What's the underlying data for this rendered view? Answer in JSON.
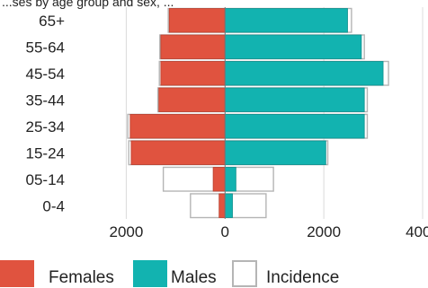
{
  "chart_data": {
    "type": "bar",
    "title": "...ses by age group and sex, ...",
    "orientation": "horizontal-population-pyramid",
    "categories": [
      "0-4",
      "05-14",
      "15-24",
      "25-34",
      "35-44",
      "45-54",
      "55-64",
      "65+"
    ],
    "series": [
      {
        "name": "Females",
        "color": "#e0533f",
        "side": "left",
        "values": [
          120,
          240,
          1900,
          1920,
          1340,
          1300,
          1300,
          1130
        ]
      },
      {
        "name": "Males",
        "color": "#12b3b0",
        "side": "right",
        "values": [
          150,
          220,
          2040,
          2820,
          2820,
          3200,
          2760,
          2480
        ]
      },
      {
        "name": "Incidence",
        "color": "#ffffff",
        "border": "#b5b5b5",
        "role": "outline",
        "female_values": [
          700,
          1250,
          1950,
          1970,
          1360,
          1330,
          1320,
          1150
        ],
        "male_values": [
          830,
          980,
          2080,
          2880,
          2880,
          3310,
          2820,
          2560
        ]
      }
    ],
    "x_ticks": [
      "2000",
      "0",
      "2000",
      "4000"
    ],
    "x_tick_values": [
      -2000,
      0,
      2000,
      4000
    ],
    "xlim": [
      -3100,
      4000
    ],
    "grid": "vertical",
    "legend": "bottom"
  }
}
